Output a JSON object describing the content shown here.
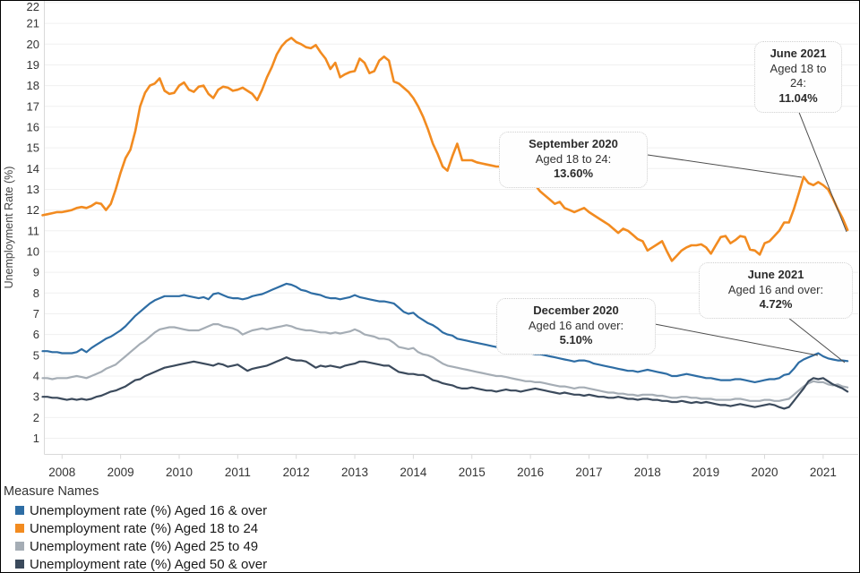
{
  "chart_data": {
    "type": "line",
    "title": "",
    "ylabel": "Unemployment Rate (%)",
    "x_unit": "month",
    "x_start": "2007-09",
    "x_end": "2021-06",
    "x_tick_labels": [
      "2008",
      "2009",
      "2010",
      "2011",
      "2012",
      "2013",
      "2014",
      "2015",
      "2016",
      "2017",
      "2018",
      "2019",
      "2020",
      "2021"
    ],
    "y_ticks": [
      1,
      2,
      3,
      4,
      5,
      6,
      7,
      8,
      9,
      10,
      11,
      12,
      13,
      14,
      15,
      16,
      17,
      18,
      19,
      20,
      21,
      22
    ],
    "ylim": [
      0,
      22.3
    ],
    "grid": "horizontal",
    "legend_position": "bottom-left",
    "series": [
      {
        "name": "Unemployment rate (%) Aged 16 & over",
        "color": "#2e6da4",
        "values": [
          5.2,
          5.2,
          5.15,
          5.15,
          5.1,
          5.1,
          5.1,
          5.15,
          5.3,
          5.15,
          5.35,
          5.5,
          5.65,
          5.8,
          5.9,
          6.05,
          6.2,
          6.4,
          6.65,
          6.9,
          7.1,
          7.3,
          7.5,
          7.65,
          7.75,
          7.85,
          7.85,
          7.85,
          7.85,
          7.9,
          7.85,
          7.8,
          7.75,
          7.8,
          7.7,
          7.95,
          8.0,
          7.9,
          7.8,
          7.75,
          7.75,
          7.7,
          7.75,
          7.85,
          7.9,
          7.95,
          8.05,
          8.15,
          8.25,
          8.35,
          8.45,
          8.4,
          8.3,
          8.15,
          8.1,
          8.0,
          7.95,
          7.9,
          7.8,
          7.75,
          7.75,
          7.7,
          7.75,
          7.8,
          7.9,
          7.8,
          7.75,
          7.7,
          7.65,
          7.6,
          7.6,
          7.55,
          7.5,
          7.3,
          7.1,
          7.0,
          7.05,
          6.85,
          6.7,
          6.55,
          6.45,
          6.3,
          6.1,
          6.0,
          5.95,
          5.8,
          5.75,
          5.7,
          5.65,
          5.6,
          5.55,
          5.5,
          5.45,
          5.4,
          5.35,
          5.3,
          5.25,
          5.2,
          5.15,
          5.1,
          5.1,
          5.05,
          5.05,
          5.0,
          4.95,
          4.9,
          4.85,
          4.8,
          4.75,
          4.7,
          4.75,
          4.75,
          4.7,
          4.6,
          4.55,
          4.5,
          4.45,
          4.4,
          4.35,
          4.3,
          4.25,
          4.25,
          4.2,
          4.25,
          4.3,
          4.25,
          4.2,
          4.15,
          4.1,
          4.0,
          4.0,
          4.05,
          4.1,
          4.05,
          4.0,
          3.95,
          3.9,
          3.9,
          3.85,
          3.8,
          3.8,
          3.8,
          3.85,
          3.85,
          3.8,
          3.75,
          3.7,
          3.75,
          3.8,
          3.85,
          3.85,
          3.9,
          4.05,
          4.1,
          4.35,
          4.65,
          4.8,
          4.9,
          5.0,
          5.1,
          4.95,
          4.85,
          4.8,
          4.75,
          4.75,
          4.72
        ]
      },
      {
        "name": "Unemployment rate (%) Aged 18 to 24",
        "color": "#f28b20",
        "values": [
          11.75,
          11.8,
          11.85,
          11.9,
          11.9,
          11.95,
          12.0,
          12.1,
          12.15,
          12.1,
          12.2,
          12.35,
          12.3,
          12.0,
          12.3,
          13.0,
          13.8,
          14.5,
          14.9,
          15.8,
          17.0,
          17.65,
          18.0,
          18.1,
          18.35,
          17.75,
          17.6,
          17.65,
          18.0,
          18.15,
          17.8,
          17.7,
          17.95,
          18.0,
          17.6,
          17.4,
          17.8,
          17.95,
          17.9,
          17.75,
          17.8,
          17.9,
          17.75,
          17.6,
          17.3,
          17.8,
          18.4,
          18.9,
          19.5,
          19.9,
          20.15,
          20.3,
          20.1,
          20.0,
          19.85,
          19.8,
          19.95,
          19.6,
          19.3,
          18.8,
          19.1,
          18.4,
          18.55,
          18.65,
          18.7,
          19.3,
          19.1,
          18.6,
          18.7,
          19.2,
          19.4,
          19.2,
          18.2,
          18.1,
          17.9,
          17.7,
          17.4,
          17.0,
          16.5,
          15.9,
          15.2,
          14.7,
          14.1,
          13.9,
          14.6,
          15.2,
          14.4,
          14.4,
          14.4,
          14.3,
          14.25,
          14.2,
          14.15,
          14.1,
          14.1,
          14.05,
          14.0,
          13.8,
          13.65,
          13.55,
          13.5,
          13.2,
          12.9,
          12.7,
          12.5,
          12.3,
          12.4,
          12.1,
          12.0,
          11.9,
          12.0,
          12.1,
          11.9,
          11.75,
          11.6,
          11.45,
          11.3,
          11.1,
          10.9,
          11.1,
          11.0,
          10.8,
          10.6,
          10.5,
          10.05,
          10.2,
          10.35,
          10.5,
          10.0,
          9.55,
          9.8,
          10.05,
          10.2,
          10.3,
          10.3,
          10.35,
          10.2,
          9.9,
          10.3,
          10.7,
          10.75,
          10.4,
          10.55,
          10.75,
          10.7,
          10.1,
          10.05,
          9.85,
          10.4,
          10.5,
          10.75,
          11.0,
          11.4,
          11.4,
          12.05,
          12.8,
          13.6,
          13.3,
          13.2,
          13.35,
          13.2,
          13.0,
          12.55,
          12.05,
          11.6,
          11.04
        ]
      },
      {
        "name": "Unemployment rate (%) Aged 25 to 49",
        "color": "#a5adb5",
        "values": [
          3.9,
          3.9,
          3.85,
          3.9,
          3.9,
          3.9,
          3.95,
          4.0,
          3.95,
          3.9,
          4.0,
          4.1,
          4.2,
          4.35,
          4.45,
          4.55,
          4.75,
          4.95,
          5.15,
          5.35,
          5.55,
          5.7,
          5.9,
          6.1,
          6.25,
          6.3,
          6.35,
          6.35,
          6.3,
          6.25,
          6.2,
          6.2,
          6.2,
          6.3,
          6.4,
          6.5,
          6.5,
          6.4,
          6.35,
          6.3,
          6.2,
          6.0,
          6.1,
          6.2,
          6.25,
          6.3,
          6.25,
          6.3,
          6.35,
          6.4,
          6.45,
          6.4,
          6.3,
          6.25,
          6.2,
          6.2,
          6.15,
          6.1,
          6.1,
          6.05,
          6.1,
          6.05,
          6.1,
          6.15,
          6.25,
          6.15,
          6.0,
          5.95,
          5.9,
          5.8,
          5.8,
          5.75,
          5.6,
          5.4,
          5.35,
          5.3,
          5.35,
          5.15,
          5.05,
          5.0,
          4.9,
          4.75,
          4.6,
          4.5,
          4.45,
          4.4,
          4.35,
          4.3,
          4.25,
          4.2,
          4.15,
          4.1,
          4.05,
          4.0,
          4.0,
          3.95,
          3.9,
          3.85,
          3.8,
          3.75,
          3.75,
          3.7,
          3.7,
          3.65,
          3.6,
          3.55,
          3.5,
          3.5,
          3.45,
          3.4,
          3.45,
          3.45,
          3.4,
          3.35,
          3.3,
          3.25,
          3.2,
          3.2,
          3.15,
          3.15,
          3.1,
          3.1,
          3.05,
          3.1,
          3.1,
          3.1,
          3.05,
          3.05,
          3.0,
          2.95,
          2.95,
          3.0,
          3.0,
          2.95,
          2.95,
          2.9,
          2.9,
          2.9,
          2.85,
          2.85,
          2.85,
          2.85,
          2.9,
          2.9,
          2.85,
          2.8,
          2.8,
          2.8,
          2.85,
          2.85,
          2.8,
          2.8,
          2.85,
          2.9,
          3.1,
          3.3,
          3.5,
          3.65,
          3.75,
          3.7,
          3.7,
          3.6,
          3.55,
          3.6,
          3.5,
          3.45
        ]
      },
      {
        "name": "Unemployment rate (%) Aged 50 & over",
        "color": "#3b4a5c",
        "values": [
          3.0,
          3.0,
          2.95,
          2.95,
          2.9,
          2.85,
          2.9,
          2.85,
          2.9,
          2.85,
          2.9,
          3.0,
          3.05,
          3.15,
          3.25,
          3.3,
          3.4,
          3.5,
          3.65,
          3.8,
          3.85,
          4.0,
          4.1,
          4.2,
          4.3,
          4.4,
          4.45,
          4.5,
          4.55,
          4.6,
          4.65,
          4.7,
          4.65,
          4.6,
          4.55,
          4.5,
          4.6,
          4.55,
          4.45,
          4.5,
          4.55,
          4.4,
          4.25,
          4.35,
          4.4,
          4.45,
          4.5,
          4.6,
          4.7,
          4.8,
          4.9,
          4.8,
          4.75,
          4.75,
          4.7,
          4.55,
          4.4,
          4.5,
          4.45,
          4.5,
          4.45,
          4.4,
          4.5,
          4.55,
          4.6,
          4.7,
          4.7,
          4.65,
          4.6,
          4.55,
          4.5,
          4.5,
          4.35,
          4.2,
          4.15,
          4.1,
          4.1,
          4.05,
          4.05,
          3.95,
          3.8,
          3.75,
          3.65,
          3.6,
          3.55,
          3.45,
          3.4,
          3.4,
          3.45,
          3.4,
          3.35,
          3.3,
          3.3,
          3.25,
          3.3,
          3.35,
          3.3,
          3.3,
          3.25,
          3.3,
          3.35,
          3.4,
          3.35,
          3.3,
          3.25,
          3.2,
          3.15,
          3.2,
          3.15,
          3.1,
          3.1,
          3.05,
          3.1,
          3.05,
          3.0,
          3.0,
          2.95,
          2.95,
          3.0,
          2.95,
          2.9,
          2.9,
          2.85,
          2.9,
          2.9,
          2.85,
          2.85,
          2.8,
          2.8,
          2.75,
          2.75,
          2.8,
          2.75,
          2.7,
          2.75,
          2.7,
          2.75,
          2.7,
          2.65,
          2.6,
          2.6,
          2.55,
          2.6,
          2.65,
          2.6,
          2.55,
          2.5,
          2.55,
          2.6,
          2.65,
          2.6,
          2.5,
          2.43,
          2.5,
          2.8,
          3.1,
          3.4,
          3.75,
          3.9,
          3.85,
          3.9,
          3.75,
          3.6,
          3.5,
          3.4,
          3.25
        ]
      }
    ]
  },
  "annotations": [
    {
      "title": "June 2021",
      "subtitle": "Aged 18 to 24:",
      "value": "11.04%"
    },
    {
      "title": "September 2020",
      "subtitle": "Aged 18 to 24:",
      "value": "13.60%"
    },
    {
      "title": "June 2021",
      "subtitle": "Aged 16 and over:",
      "value": "4.72%"
    },
    {
      "title": "December 2020",
      "subtitle": "Aged 16 and over:",
      "value": "5.10%"
    }
  ],
  "legend": {
    "title": "Measure Names"
  }
}
